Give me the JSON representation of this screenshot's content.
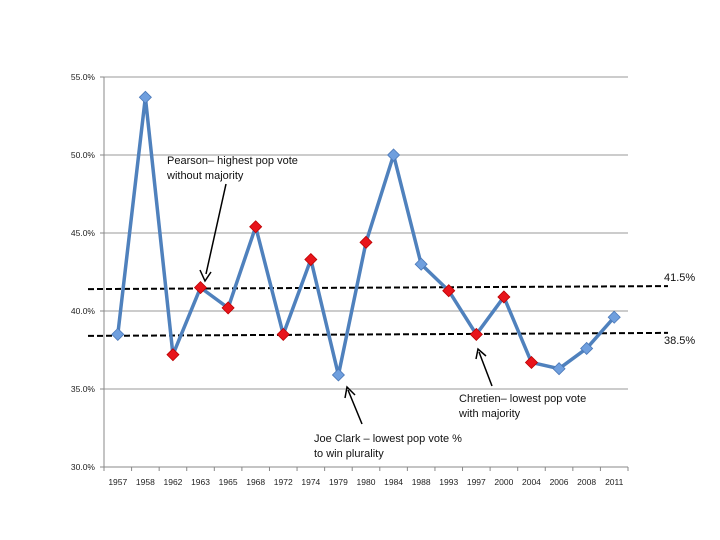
{
  "chart_data": {
    "type": "line",
    "title": "",
    "xlabel": "",
    "ylabel": "",
    "ylim": [
      30,
      55
    ],
    "y_ticks": [
      "30.0%",
      "35.0%",
      "40.0%",
      "45.0%",
      "50.0%",
      "55.0%"
    ],
    "grid": "horizontal",
    "categories": [
      "1957",
      "1958",
      "1962",
      "1963",
      "1965",
      "1968",
      "1972",
      "1974",
      "1979",
      "1980",
      "1984",
      "1988",
      "1993",
      "1997",
      "2000",
      "2004",
      "2006",
      "2008",
      "2011"
    ],
    "series": [
      {
        "values": [
          38.5,
          53.7,
          37.2,
          41.5,
          40.2,
          45.4,
          38.5,
          43.3,
          35.9,
          44.4,
          50.0,
          43.0,
          41.3,
          38.5,
          40.9,
          36.7,
          36.3,
          37.6,
          39.6
        ],
        "marker_colors": [
          "blue",
          "blue",
          "red",
          "red",
          "red",
          "red",
          "red",
          "red",
          "blue",
          "red",
          "blue",
          "blue",
          "red",
          "red",
          "red",
          "red",
          "blue",
          "blue",
          "blue"
        ],
        "line_color": "#4f81bd"
      }
    ],
    "colors": {
      "blue": "#6f9fde",
      "red": "#e8141b",
      "line": "#4f81bd"
    },
    "reference_lines": [
      {
        "value": 41.5,
        "label": "41.5%"
      },
      {
        "value": 38.5,
        "label": "38.5%"
      }
    ],
    "annotations": [
      {
        "lines": [
          "Pearson– highest pop vote",
          "without majority"
        ],
        "target": "1963"
      },
      {
        "lines": [
          "Joe Clark – lowest pop vote %",
          "to win plurality"
        ],
        "target": "1979"
      },
      {
        "lines": [
          "Chretien– lowest pop vote",
          "with majority"
        ],
        "target": "1997"
      }
    ]
  }
}
